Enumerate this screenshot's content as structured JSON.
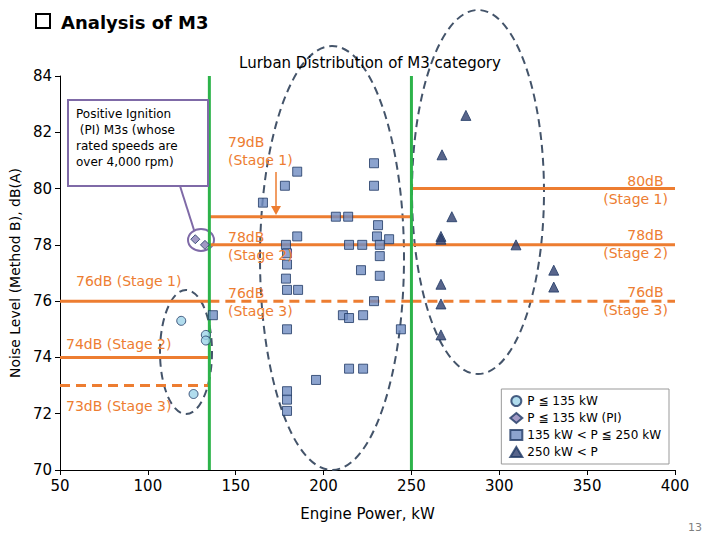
{
  "chart_data": {
    "type": "scatter",
    "title": "Analysis of M3",
    "subtitle": "Lurban Distribution of M3 category",
    "x_label": "Engine Power, kW",
    "y_label": "Noise Level (Method B), dB(A)",
    "xlim": [
      50,
      400
    ],
    "xticks": [
      50,
      100,
      150,
      200,
      250,
      300,
      350,
      400
    ],
    "ylim": [
      70,
      84
    ],
    "yticks": [
      70,
      72,
      74,
      76,
      78,
      80,
      82,
      84
    ],
    "grid": false,
    "legend": "lower right",
    "series": [
      {
        "name": "P ≦ 135 kW",
        "marker": "circle",
        "color": "#9dd3e8",
        "x": [
          119,
          126,
          133,
          133
        ],
        "values": [
          75.3,
          72.7,
          74.8,
          74.6
        ]
      },
      {
        "name": "P ≦ 135 kW (PI)",
        "marker": "diamond",
        "color": "#8a7fb5",
        "x": [
          127,
          132.5
        ],
        "values": [
          78.2,
          78.0
        ]
      },
      {
        "name": "135 kW < P ≦ 250 kW",
        "marker": "square",
        "color": "#6f8cc2",
        "x": [
          137,
          165.5,
          185,
          178,
          207,
          214,
          228.7,
          228.7,
          185,
          178.6,
          214.5,
          222,
          231,
          230.4,
          237.3,
          232,
          221.3,
          232,
          232,
          179.2,
          179.2,
          178.6,
          179.2,
          185.5,
          228.7,
          179.2,
          211,
          214.5,
          222.5,
          244,
          214.5,
          222.5,
          195.7,
          179.2,
          179.2,
          179.2
        ],
        "values": [
          75.5,
          79.5,
          80.6,
          80.1,
          79.0,
          79.0,
          80.9,
          80.1,
          78.3,
          78.0,
          78.0,
          78.0,
          78.7,
          78.3,
          78.2,
          78.0,
          77.1,
          77.6,
          76.9,
          77.7,
          77.3,
          76.8,
          76.4,
          76.4,
          76.0,
          75.0,
          75.5,
          75.4,
          75.5,
          75.0,
          73.6,
          73.6,
          73.2,
          72.8,
          72.5,
          72.1
        ]
      },
      {
        "name": "250 kW < P",
        "marker": "triangle",
        "color": "#2e3f6e",
        "x": [
          281,
          267.4,
          273,
          266.8,
          266.8,
          309.5,
          331,
          331,
          266.8,
          266.8,
          266.8
        ],
        "values": [
          82.6,
          81.2,
          79.0,
          78.3,
          78.2,
          78.0,
          77.1,
          76.5,
          76.6,
          75.9,
          74.8
        ]
      }
    ],
    "limit_lines": [
      {
        "value": 79,
        "x_range": [
          135,
          250
        ],
        "line_style": "solid",
        "color": "#ed7d31",
        "label": "79dB (Stage 1)"
      },
      {
        "value": 78,
        "x_range": [
          135,
          250
        ],
        "line_style": "solid",
        "color": "#ed7d31",
        "label": "78dB (Stage 2)"
      },
      {
        "value": 76,
        "x_range": [
          135,
          250
        ],
        "line_style": "dashed",
        "color": "#ed7d31",
        "label": "76dB (Stage 3)"
      },
      {
        "value": 80,
        "x_range": [
          250,
          400
        ],
        "line_style": "solid",
        "color": "#ed7d31",
        "label": "80dB (Stage 1)"
      },
      {
        "value": 78,
        "x_range": [
          250,
          400
        ],
        "line_style": "solid",
        "color": "#ed7d31",
        "label": "78dB (Stage 2)"
      },
      {
        "value": 76,
        "x_range": [
          250,
          400
        ],
        "line_style": "dashed",
        "color": "#ed7d31",
        "label": "76dB (Stage 3)"
      },
      {
        "value": 76,
        "x_range": [
          50,
          135
        ],
        "line_style": "solid",
        "color": "#ed7d31",
        "label": "76dB (Stage 1)"
      },
      {
        "value": 74,
        "x_range": [
          50,
          135
        ],
        "line_style": "solid",
        "color": "#ed7d31",
        "label": "74dB (Stage 2)"
      },
      {
        "value": 73,
        "x_range": [
          50,
          135
        ],
        "line_style": "dashed",
        "color": "#ed7d31",
        "label": "73dB (Stage 3)"
      }
    ],
    "category_boundaries": [
      135,
      250
    ],
    "boundary_color": "#2db34a",
    "annotations": [
      "Positive Ignition (PI) M3s (whose rated speeds are over 4,000 rpm)"
    ],
    "slide_number": 13
  }
}
